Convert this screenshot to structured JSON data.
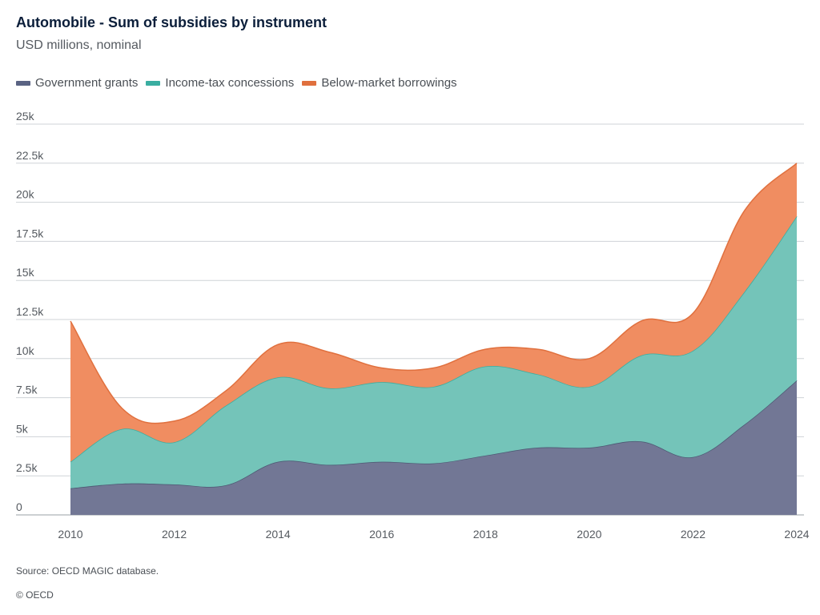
{
  "title": "Automobile - Sum of subsidies by instrument",
  "subtitle": "USD millions, nominal",
  "source": "Source: OECD MAGIC database.",
  "copyright": "© OECD",
  "chart_data": {
    "type": "area",
    "stacked": true,
    "x": [
      2010,
      2011,
      2012,
      2013,
      2014,
      2015,
      2016,
      2017,
      2018,
      2019,
      2020,
      2021,
      2022,
      2023,
      2024
    ],
    "x_ticks": [
      "2010",
      "2012",
      "2014",
      "2016",
      "2018",
      "2020",
      "2022",
      "2024"
    ],
    "y_ticks": [
      "0",
      "2.5k",
      "5k",
      "7.5k",
      "10k",
      "12.5k",
      "15k",
      "17.5k",
      "20k",
      "22.5k",
      "25k"
    ],
    "ylim": [
      0,
      25000
    ],
    "grid": true,
    "legend_position": "top-left",
    "series": [
      {
        "name": "Government grants",
        "color": "#727795",
        "line_color": "#4d5a74",
        "values": [
          1700,
          2000,
          1950,
          1900,
          3400,
          3200,
          3400,
          3300,
          3800,
          4300,
          4300,
          4700,
          3700,
          5800,
          8600
        ]
      },
      {
        "name": "Income-tax concessions",
        "color": "#74c4b9",
        "line_color": "#3aaea1",
        "values": [
          1700,
          3500,
          2700,
          5100,
          5400,
          4900,
          5100,
          4900,
          5700,
          4700,
          3900,
          5500,
          6800,
          8500,
          10500
        ]
      },
      {
        "name": "Below-market borrowings",
        "color": "#f08d61",
        "line_color": "#e0703e",
        "values": [
          9000,
          1300,
          1350,
          950,
          2100,
          2300,
          900,
          1200,
          1100,
          1600,
          1800,
          2200,
          2400,
          5200,
          3400
        ]
      }
    ]
  }
}
